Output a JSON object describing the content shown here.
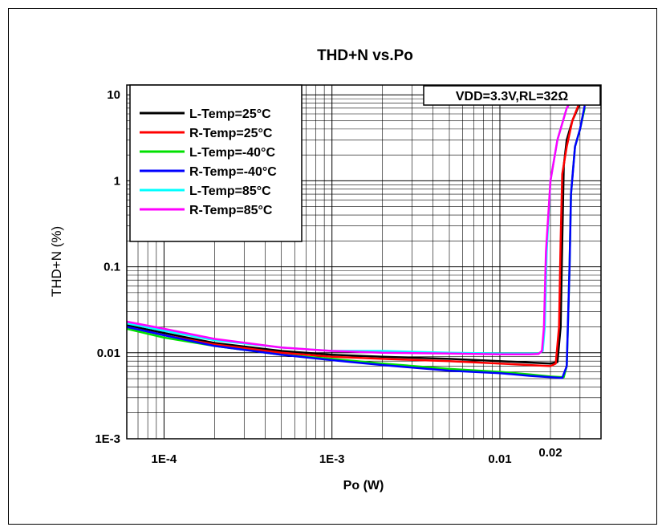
{
  "chart_data": {
    "type": "line",
    "title": "THD+N vs.Po",
    "xlabel": "Po (W)",
    "ylabel": "THD+N (%)",
    "x_scale": "log",
    "y_scale": "log",
    "xlim": [
      6e-05,
      0.04
    ],
    "ylim": [
      0.001,
      13
    ],
    "x_ticks": [
      {
        "value": 0.0001,
        "label": "1E-4"
      },
      {
        "value": 0.001,
        "label": "1E-3"
      },
      {
        "value": 0.01,
        "label": "0.01"
      },
      {
        "value": 0.02,
        "label": "0.02"
      }
    ],
    "y_ticks": [
      {
        "value": 0.001,
        "label": "1E-3"
      },
      {
        "value": 0.01,
        "label": "0.01"
      },
      {
        "value": 0.1,
        "label": "0.1"
      },
      {
        "value": 1,
        "label": "1"
      },
      {
        "value": 10,
        "label": "10"
      }
    ],
    "grid": true,
    "legend_position": "top-left",
    "annotation": "VDD=3.3V,RL=32Ω",
    "series": [
      {
        "name": "L-Temp=25°C",
        "color": "#000000",
        "x": [
          6e-05,
          0.0001,
          0.0002,
          0.0005,
          0.001,
          0.002,
          0.005,
          0.01,
          0.015,
          0.02,
          0.022,
          0.023,
          0.0235,
          0.024,
          0.025,
          0.027,
          0.03
        ],
        "y": [
          0.021,
          0.017,
          0.013,
          0.0105,
          0.0095,
          0.009,
          0.0085,
          0.008,
          0.0077,
          0.0075,
          0.0078,
          0.02,
          0.2,
          1.5,
          3,
          5,
          8
        ]
      },
      {
        "name": "R-Temp=25°C",
        "color": "#ff0000",
        "x": [
          6e-05,
          0.0001,
          0.0002,
          0.0005,
          0.001,
          0.002,
          0.005,
          0.01,
          0.015,
          0.02,
          0.0215,
          0.0225,
          0.023,
          0.0235,
          0.025,
          0.027,
          0.03
        ],
        "y": [
          0.02,
          0.016,
          0.0125,
          0.01,
          0.009,
          0.0085,
          0.008,
          0.0075,
          0.0072,
          0.007,
          0.0075,
          0.02,
          0.2,
          1.2,
          2.5,
          5,
          8.5
        ]
      },
      {
        "name": "L-Temp=-40°C",
        "color": "#00e000",
        "x": [
          6e-05,
          0.0001,
          0.0002,
          0.0005,
          0.001,
          0.002,
          0.005,
          0.01,
          0.015,
          0.02,
          0.024,
          0.025,
          0.026,
          0.0265,
          0.028,
          0.03,
          0.032
        ],
        "y": [
          0.019,
          0.015,
          0.012,
          0.0095,
          0.0085,
          0.0075,
          0.0065,
          0.006,
          0.0056,
          0.0053,
          0.0052,
          0.007,
          0.1,
          0.7,
          2.5,
          4,
          7
        ]
      },
      {
        "name": "R-Temp=-40°C",
        "color": "#0000ff",
        "x": [
          6e-05,
          0.0001,
          0.0002,
          0.0005,
          0.001,
          0.002,
          0.005,
          0.01,
          0.015,
          0.02,
          0.0235,
          0.025,
          0.026,
          0.0265,
          0.028,
          0.03,
          0.032
        ],
        "y": [
          0.02,
          0.016,
          0.012,
          0.0095,
          0.0082,
          0.0072,
          0.0062,
          0.0058,
          0.0054,
          0.0052,
          0.0051,
          0.007,
          0.1,
          0.7,
          2.5,
          4,
          7.5
        ]
      },
      {
        "name": "L-Temp=85°C",
        "color": "#00ffff",
        "x": [
          6e-05,
          0.0001,
          0.0002,
          0.0005,
          0.001,
          0.002,
          0.005,
          0.01,
          0.015,
          0.017,
          0.018,
          0.0185,
          0.019,
          0.02,
          0.022,
          0.025,
          0.027
        ],
        "y": [
          0.022,
          0.018,
          0.014,
          0.0115,
          0.0105,
          0.0105,
          0.01,
          0.0098,
          0.0098,
          0.0098,
          0.0105,
          0.02,
          0.15,
          1,
          3,
          7,
          9
        ]
      },
      {
        "name": "R-Temp=85°C",
        "color": "#ff00ff",
        "x": [
          6e-05,
          0.0001,
          0.0002,
          0.0005,
          0.001,
          0.002,
          0.005,
          0.01,
          0.015,
          0.017,
          0.0178,
          0.0183,
          0.0188,
          0.02,
          0.022,
          0.025,
          0.027
        ],
        "y": [
          0.023,
          0.019,
          0.0145,
          0.0115,
          0.0105,
          0.01,
          0.0098,
          0.0096,
          0.0096,
          0.0097,
          0.0105,
          0.02,
          0.15,
          1,
          3,
          7,
          9
        ]
      }
    ]
  }
}
